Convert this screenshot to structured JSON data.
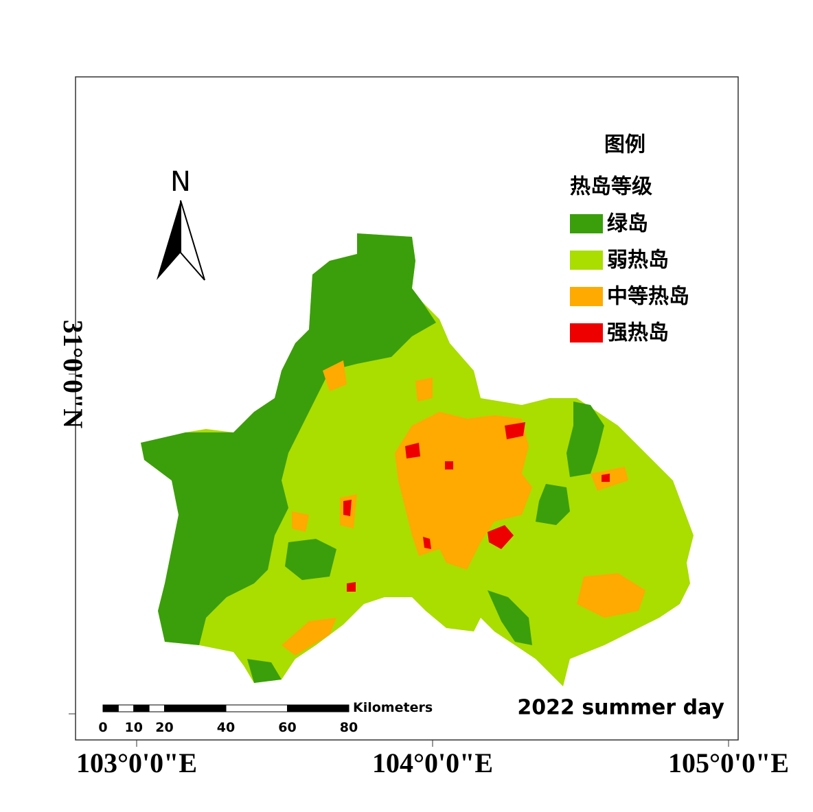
{
  "map": {
    "north": "N",
    "legend": {
      "title": "图例",
      "subtitle": "热岛等级",
      "items": [
        {
          "label": "绿岛",
          "color": "#3a9f0b"
        },
        {
          "label": "弱热岛",
          "color": "#aadd00"
        },
        {
          "label": "中等热岛",
          "color": "#ffaa00"
        },
        {
          "label": "强热岛",
          "color": "#ee0000"
        }
      ]
    },
    "scale_bar": {
      "unit": "Kilometers",
      "ticks": [
        0,
        10,
        20,
        40,
        60,
        80
      ]
    },
    "caption": "2022 summer day",
    "x_labels": [
      "103°0'0\"E",
      "104°0'0\"E",
      "105°0'0\"E"
    ],
    "y_labels": [
      "31°0'0\"N"
    ]
  }
}
